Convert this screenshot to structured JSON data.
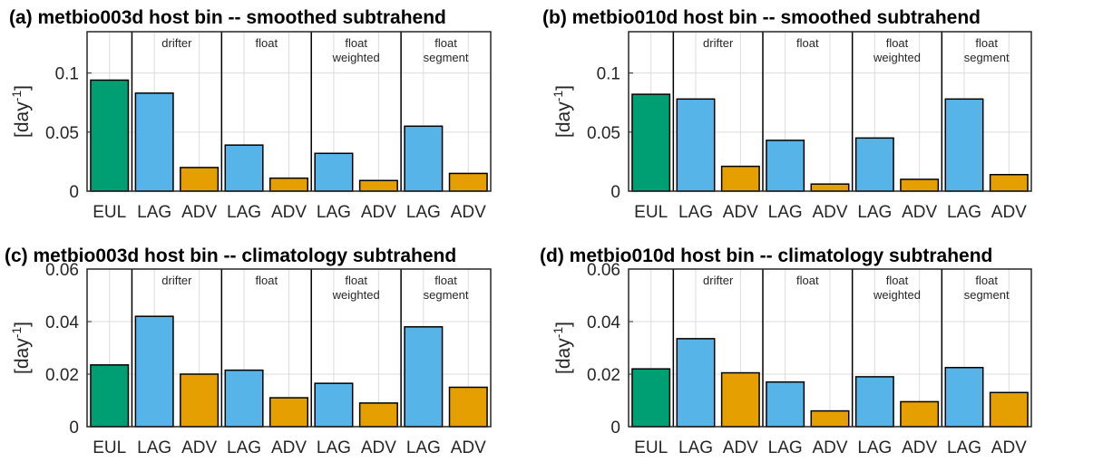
{
  "colors": {
    "EUL": "#009E73",
    "LAG": "#56B4E9",
    "ADV": "#E69F00"
  },
  "chart_data": [
    {
      "type": "bar",
      "title": "(a) metbio003d host bin -- smoothed subtrahend",
      "ylabel": "[day-1]",
      "ylim": [
        0,
        0.135
      ],
      "yticks": [
        "0",
        "0.05",
        "0.1"
      ],
      "ytick_values": [
        0,
        0.05,
        0.1
      ],
      "grid": true,
      "categories": [
        "EUL",
        "LAG",
        "ADV",
        "LAG",
        "ADV",
        "LAG",
        "ADV",
        "LAG",
        "ADV"
      ],
      "values": [
        0.094,
        0.083,
        0.02,
        0.039,
        0.011,
        0.032,
        0.009,
        0.055,
        0.015
      ],
      "groups": [
        {
          "lines": [
            "drifter"
          ]
        },
        {
          "lines": [
            "float"
          ]
        },
        {
          "lines": [
            "float",
            "weighted"
          ]
        },
        {
          "lines": [
            "float",
            "segment"
          ]
        }
      ]
    },
    {
      "type": "bar",
      "title": "(b) metbio010d host bin -- smoothed subtrahend",
      "ylabel": "[day-1]",
      "ylim": [
        0,
        0.135
      ],
      "yticks": [
        "0",
        "0.05",
        "0.1"
      ],
      "ytick_values": [
        0,
        0.05,
        0.1
      ],
      "grid": true,
      "categories": [
        "EUL",
        "LAG",
        "ADV",
        "LAG",
        "ADV",
        "LAG",
        "ADV",
        "LAG",
        "ADV"
      ],
      "values": [
        0.082,
        0.078,
        0.021,
        0.043,
        0.006,
        0.045,
        0.01,
        0.078,
        0.014
      ],
      "groups": [
        {
          "lines": [
            "drifter"
          ]
        },
        {
          "lines": [
            "float"
          ]
        },
        {
          "lines": [
            "float",
            "weighted"
          ]
        },
        {
          "lines": [
            "float",
            "segment"
          ]
        }
      ]
    },
    {
      "type": "bar",
      "title": "(c) metbio003d host bin -- climatology subtrahend",
      "ylabel": "[day-1]",
      "ylim": [
        0,
        0.06
      ],
      "yticks": [
        "0",
        "0.02",
        "0.04",
        "0.06"
      ],
      "ytick_values": [
        0,
        0.02,
        0.04,
        0.06
      ],
      "grid": true,
      "categories": [
        "EUL",
        "LAG",
        "ADV",
        "LAG",
        "ADV",
        "LAG",
        "ADV",
        "LAG",
        "ADV"
      ],
      "values": [
        0.0235,
        0.042,
        0.02,
        0.0215,
        0.011,
        0.0165,
        0.009,
        0.038,
        0.015
      ],
      "groups": [
        {
          "lines": [
            "drifter"
          ]
        },
        {
          "lines": [
            "float"
          ]
        },
        {
          "lines": [
            "float",
            "weighted"
          ]
        },
        {
          "lines": [
            "float",
            "segment"
          ]
        }
      ]
    },
    {
      "type": "bar",
      "title": "(d) metbio010d host bin -- climatology subtrahend",
      "ylabel": "[day-1]",
      "ylim": [
        0,
        0.06
      ],
      "yticks": [
        "0",
        "0.02",
        "0.04",
        "0.06"
      ],
      "ytick_values": [
        0,
        0.02,
        0.04,
        0.06
      ],
      "grid": true,
      "categories": [
        "EUL",
        "LAG",
        "ADV",
        "LAG",
        "ADV",
        "LAG",
        "ADV",
        "LAG",
        "ADV"
      ],
      "values": [
        0.022,
        0.0335,
        0.0205,
        0.017,
        0.006,
        0.019,
        0.0095,
        0.0225,
        0.013
      ],
      "groups": [
        {
          "lines": [
            "drifter"
          ]
        },
        {
          "lines": [
            "float"
          ]
        },
        {
          "lines": [
            "float",
            "weighted"
          ]
        },
        {
          "lines": [
            "float",
            "segment"
          ]
        }
      ]
    }
  ]
}
